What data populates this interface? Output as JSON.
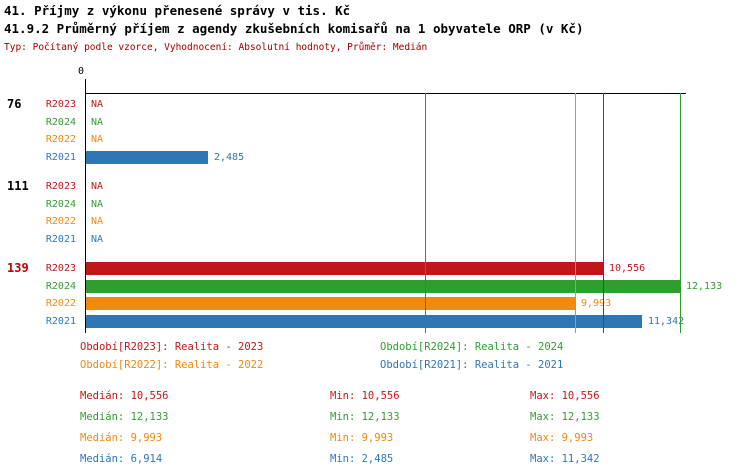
{
  "header": {
    "title1": "41. Příjmy z výkonu přenesené správy v tis. Kč",
    "title2": "41.9.2 Průměrný příjem z agendy zkušebních komisařů na 1 obyvatele ORP (v Kč)",
    "subtitle": "Typ: Počítaný podle vzorce, Vyhodnocení: Absolutní hodnoty, Průměr: Medián"
  },
  "colors": {
    "r2023": "#c01818",
    "r2024": "#2f9e2f",
    "r2022": "#ef8a11",
    "r2021": "#2f76b5",
    "subtitle": "#a00000",
    "axis": "#000000"
  },
  "chart_data": {
    "type": "bar",
    "orientation": "horizontal",
    "axis_zero_label": "0",
    "xlim": [
      0,
      12250
    ],
    "series_order": [
      "R2023",
      "R2024",
      "R2022",
      "R2021"
    ],
    "groups": [
      {
        "label": "76",
        "label_color": "#000000",
        "rows": [
          {
            "series": "R2023",
            "value": null,
            "display": "NA",
            "color": "#c01818"
          },
          {
            "series": "R2024",
            "value": null,
            "display": "NA",
            "color": "#2f9e2f"
          },
          {
            "series": "R2022",
            "value": null,
            "display": "NA",
            "color": "#ef8a11"
          },
          {
            "series": "R2021",
            "value": 2485,
            "display": "2,485",
            "color": "#2f76b5"
          }
        ]
      },
      {
        "label": "111",
        "label_color": "#000000",
        "rows": [
          {
            "series": "R2023",
            "value": null,
            "display": "NA",
            "color": "#c01818"
          },
          {
            "series": "R2024",
            "value": null,
            "display": "NA",
            "color": "#2f9e2f"
          },
          {
            "series": "R2022",
            "value": null,
            "display": "NA",
            "color": "#ef8a11"
          },
          {
            "series": "R2021",
            "value": null,
            "display": "NA",
            "color": "#2f76b5"
          }
        ]
      },
      {
        "label": "139",
        "label_color": "#c00000",
        "rows": [
          {
            "series": "R2023",
            "value": 10556,
            "display": "10,556",
            "color": "#c01818"
          },
          {
            "series": "R2024",
            "value": 12133,
            "display": "12,133",
            "color": "#2f9e2f"
          },
          {
            "series": "R2022",
            "value": 9993,
            "display": "9,993",
            "color": "#ef8a11"
          },
          {
            "series": "R2021",
            "value": 11342,
            "display": "11,342",
            "color": "#2f76b5"
          }
        ]
      }
    ],
    "median_lines": [
      {
        "series": "R2023",
        "value": 10556,
        "color": "#c01818"
      },
      {
        "series": "R2024",
        "value": 12133,
        "color": "#2f9e2f"
      },
      {
        "series": "R2022",
        "value": 9993,
        "color": "#ef8a11"
      },
      {
        "series": "R2021",
        "value": 6914,
        "color": "#2f76b5"
      }
    ]
  },
  "legend": [
    {
      "label": "Období[R2023]: Realita - 2023",
      "color": "#c01818"
    },
    {
      "label": "Období[R2024]: Realita - 2024",
      "color": "#2f9e2f"
    },
    {
      "label": "Období[R2022]: Realita - 2022",
      "color": "#ef8a11"
    },
    {
      "label": "Období[R2021]: Realita - 2021",
      "color": "#2f76b5"
    }
  ],
  "stats": [
    {
      "median": "Medián: 10,556",
      "min": "Min: 10,556",
      "max": "Max: 10,556",
      "color": "#c01818"
    },
    {
      "median": "Medián: 12,133",
      "min": "Min: 12,133",
      "max": "Max: 12,133",
      "color": "#2f9e2f"
    },
    {
      "median": "Medián: 9,993",
      "min": "Min: 9,993",
      "max": "Max: 9,993",
      "color": "#ef8a11"
    },
    {
      "median": "Medián: 6,914",
      "min": "Min: 2,485",
      "max": "Max: 11,342",
      "color": "#2f76b5"
    }
  ]
}
